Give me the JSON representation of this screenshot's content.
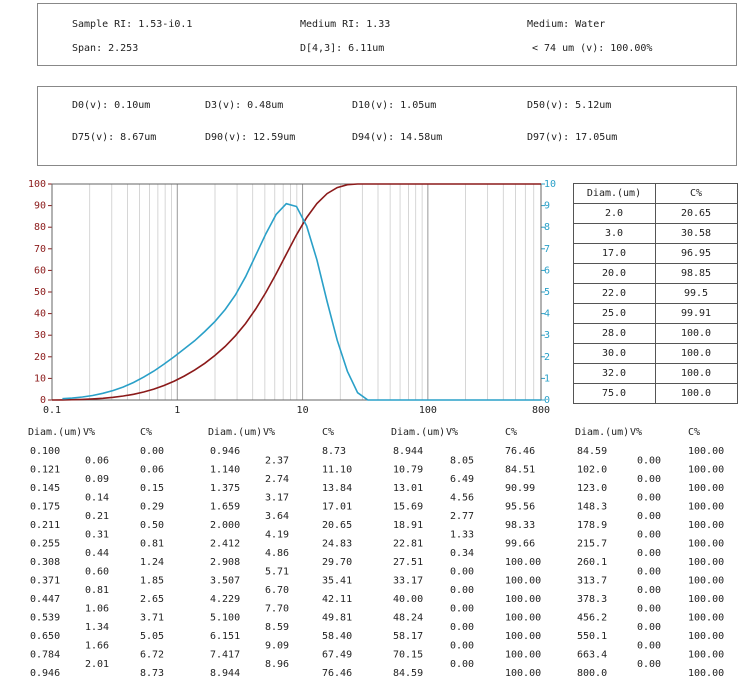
{
  "summary": [
    "Sample RI: 1.53-i0.1",
    "Medium RI: 1.33",
    "Medium: Water",
    "Span: 2.253",
    "D[4,3]: 6.11um",
    "< 74 um (v): 100.00%"
  ],
  "percentiles": [
    "D0(v): 0.10um",
    "D3(v): 0.48um",
    "D10(v): 1.05um",
    "D50(v): 5.12um",
    "D75(v): 8.67um",
    "D90(v): 12.59um",
    "D94(v): 14.58um",
    "D97(v): 17.05um"
  ],
  "chart_data": {
    "type": "line",
    "xscale": "log",
    "xlim": [
      0.1,
      800
    ],
    "xticks": [
      0.1,
      1,
      10,
      100,
      800
    ],
    "ylim": [
      0,
      100
    ],
    "yticks": [
      0,
      10,
      20,
      30,
      40,
      50,
      60,
      70,
      80,
      90,
      100
    ],
    "y2lim": [
      0,
      10
    ],
    "y2ticks": [
      0,
      1,
      2,
      3,
      4,
      5,
      6,
      7,
      8,
      9,
      10
    ],
    "grid": true,
    "x": [
      0.1,
      0.121,
      0.145,
      0.175,
      0.211,
      0.255,
      0.308,
      0.371,
      0.447,
      0.539,
      0.65,
      0.784,
      0.946,
      1.14,
      1.375,
      1.659,
      2.0,
      2.412,
      2.908,
      3.507,
      4.229,
      5.1,
      6.151,
      7.417,
      8.944,
      10.79,
      13.01,
      15.69,
      18.91,
      22.81,
      27.51,
      33.17,
      40.0,
      48.24,
      58.17,
      70.15,
      84.59,
      102.0,
      123.0,
      148.3,
      178.9,
      215.7,
      260.1,
      313.7,
      378.3,
      456.2,
      550.1,
      663.4,
      800.0
    ],
    "series": [
      {
        "color": "#8b1a1a",
        "values": [
          0,
          0.06,
          0.15,
          0.29,
          0.5,
          0.81,
          1.24,
          1.85,
          2.65,
          3.71,
          5.05,
          6.72,
          8.73,
          11.1,
          13.84,
          17.01,
          20.65,
          24.83,
          29.7,
          35.41,
          42.11,
          49.81,
          58.4,
          67.49,
          76.46,
          84.51,
          90.99,
          95.56,
          98.33,
          99.66,
          100,
          100,
          100,
          100,
          100,
          100,
          100,
          100,
          100,
          100,
          100,
          100,
          100,
          100,
          100,
          100,
          100,
          100,
          100
        ]
      },
      {
        "color": "#2aa0c8",
        "axis": "y2",
        "values": [
          null,
          0.06,
          0.09,
          0.14,
          0.21,
          0.31,
          0.44,
          0.6,
          0.81,
          1.06,
          1.34,
          1.66,
          2.01,
          2.37,
          2.74,
          3.17,
          3.64,
          4.19,
          4.86,
          5.71,
          6.7,
          7.7,
          8.59,
          9.09,
          8.96,
          8.05,
          6.49,
          4.56,
          2.77,
          1.33,
          0.34,
          0,
          0,
          0,
          0,
          0,
          0,
          0,
          0,
          0,
          0,
          0,
          0,
          0,
          0,
          0,
          0,
          0,
          0
        ]
      }
    ]
  },
  "ctable": {
    "headers": [
      "Diam.(um)",
      "C%"
    ],
    "rows": [
      [
        "2.0",
        "20.65"
      ],
      [
        "3.0",
        "30.58"
      ],
      [
        "17.0",
        "96.95"
      ],
      [
        "20.0",
        "98.85"
      ],
      [
        "22.0",
        "99.5"
      ],
      [
        "25.0",
        "99.91"
      ],
      [
        "28.0",
        "100.0"
      ],
      [
        "30.0",
        "100.0"
      ],
      [
        "32.0",
        "100.0"
      ],
      [
        "75.0",
        "100.0"
      ]
    ]
  },
  "table": {
    "headers": [
      "Diam.(um)",
      "V%",
      "C%"
    ],
    "columns": [
      {
        "diam": [
          "0.100",
          "0.121",
          "0.145",
          "0.175",
          "0.211",
          "0.255",
          "0.308",
          "0.371",
          "0.447",
          "0.539",
          "0.650",
          "0.784",
          "0.946"
        ],
        "v": [
          "0.06",
          "0.09",
          "0.14",
          "0.21",
          "0.31",
          "0.44",
          "0.60",
          "0.81",
          "1.06",
          "1.34",
          "1.66",
          "2.01"
        ],
        "c": [
          "0.00",
          "0.06",
          "0.15",
          "0.29",
          "0.50",
          "0.81",
          "1.24",
          "1.85",
          "2.65",
          "3.71",
          "5.05",
          "6.72",
          "8.73"
        ]
      },
      {
        "diam": [
          "0.946",
          "1.140",
          "1.375",
          "1.659",
          "2.000",
          "2.412",
          "2.908",
          "3.507",
          "4.229",
          "5.100",
          "6.151",
          "7.417",
          "8.944"
        ],
        "v": [
          "2.37",
          "2.74",
          "3.17",
          "3.64",
          "4.19",
          "4.86",
          "5.71",
          "6.70",
          "7.70",
          "8.59",
          "9.09",
          "8.96"
        ],
        "c": [
          "8.73",
          "11.10",
          "13.84",
          "17.01",
          "20.65",
          "24.83",
          "29.70",
          "35.41",
          "42.11",
          "49.81",
          "58.40",
          "67.49",
          "76.46"
        ]
      },
      {
        "diam": [
          "8.944",
          "10.79",
          "13.01",
          "15.69",
          "18.91",
          "22.81",
          "27.51",
          "33.17",
          "40.00",
          "48.24",
          "58.17",
          "70.15",
          "84.59"
        ],
        "v": [
          "8.05",
          "6.49",
          "4.56",
          "2.77",
          "1.33",
          "0.34",
          "0.00",
          "0.00",
          "0.00",
          "0.00",
          "0.00",
          "0.00"
        ],
        "c": [
          "76.46",
          "84.51",
          "90.99",
          "95.56",
          "98.33",
          "99.66",
          "100.00",
          "100.00",
          "100.00",
          "100.00",
          "100.00",
          "100.00",
          "100.00"
        ]
      },
      {
        "diam": [
          "84.59",
          "102.0",
          "123.0",
          "148.3",
          "178.9",
          "215.7",
          "260.1",
          "313.7",
          "378.3",
          "456.2",
          "550.1",
          "663.4",
          "800.0"
        ],
        "v": [
          "0.00",
          "0.00",
          "0.00",
          "0.00",
          "0.00",
          "0.00",
          "0.00",
          "0.00",
          "0.00",
          "0.00",
          "0.00",
          "0.00"
        ],
        "c": [
          "100.00",
          "100.00",
          "100.00",
          "100.00",
          "100.00",
          "100.00",
          "100.00",
          "100.00",
          "100.00",
          "100.00",
          "100.00",
          "100.00",
          "100.00"
        ]
      }
    ]
  }
}
